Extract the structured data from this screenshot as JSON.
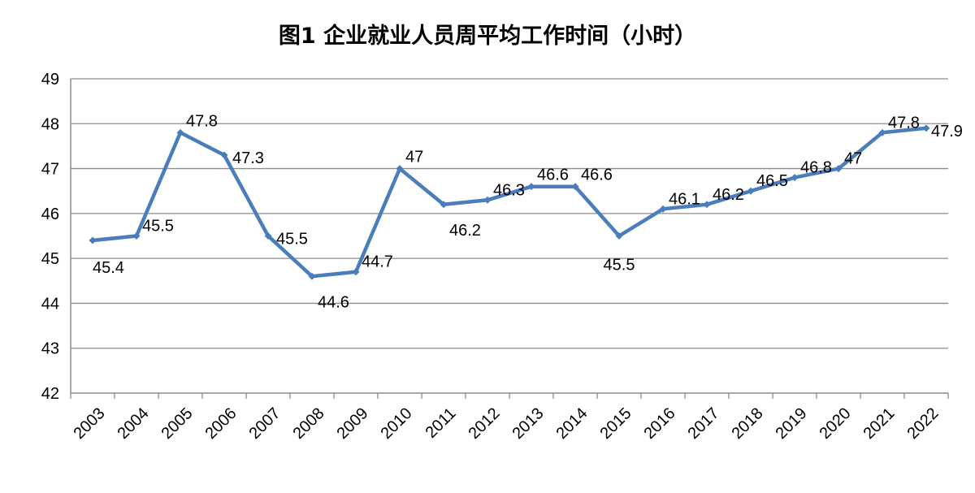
{
  "chart_data": {
    "type": "line",
    "title": "图1 企业就业人员周平均工作时间（小时）",
    "categories": [
      "2003",
      "2004",
      "2005",
      "2006",
      "2007",
      "2008",
      "2009",
      "2010",
      "2011",
      "2012",
      "2013",
      "2014",
      "2015",
      "2016",
      "2017",
      "2018",
      "2019",
      "2020",
      "2021",
      "2022"
    ],
    "values": [
      45.4,
      45.5,
      47.8,
      47.3,
      45.5,
      44.6,
      44.7,
      47,
      46.2,
      46.3,
      46.6,
      46.6,
      45.5,
      46.1,
      46.2,
      46.5,
      46.8,
      47,
      47.8,
      47.9
    ],
    "data_labels": [
      "45.4",
      "45.5",
      "47.8",
      "47.3",
      "45.5",
      "44.6",
      "44.7",
      "47",
      "46.2",
      "46.3",
      "46.6",
      "46.6",
      "45.5",
      "46.1",
      "46.2",
      "46.5",
      "46.8",
      "47",
      "47.8",
      "47.9"
    ],
    "ylim": [
      42,
      49
    ],
    "y_ticks": [
      "42",
      "43",
      "44",
      "45",
      "46",
      "47",
      "48",
      "49"
    ],
    "xlabel": "",
    "ylabel": "",
    "grid": true,
    "legend": "none",
    "line_color": "#4A7EBB",
    "grid_color": "#8C8C8C"
  }
}
